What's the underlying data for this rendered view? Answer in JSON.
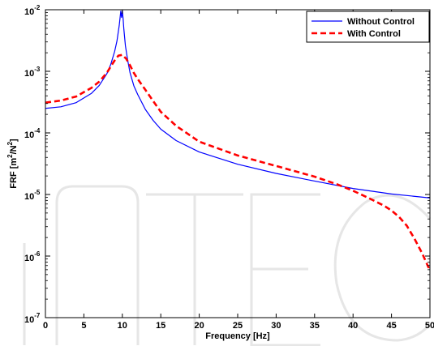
{
  "chart_data": {
    "type": "line",
    "xlabel": "Frequency [Hz]",
    "ylabel_parts": {
      "base": "FRF [m",
      "sup1": "2",
      "mid": "/N",
      "sup2": "2",
      "end": "]"
    },
    "xlim": [
      0,
      50
    ],
    "ylim_log10": [
      -7,
      -2
    ],
    "yscale": "log",
    "x_ticks": [
      0,
      5,
      10,
      15,
      20,
      25,
      30,
      35,
      40,
      45,
      50
    ],
    "y_ticks": [
      {
        "base": "10",
        "exp": "-7"
      },
      {
        "base": "10",
        "exp": "-6"
      },
      {
        "base": "10",
        "exp": "-5"
      },
      {
        "base": "10",
        "exp": "-4"
      },
      {
        "base": "10",
        "exp": "-3"
      },
      {
        "base": "10",
        "exp": "-2"
      }
    ],
    "legend_position": "top-right",
    "series": [
      {
        "name": "Without Control",
        "color": "#0000ff",
        "style": "solid",
        "x": [
          0,
          2,
          4,
          6,
          7,
          8,
          8.5,
          9,
          9.3,
          9.6,
          9.8,
          9.9,
          10.0,
          10.1,
          10.2,
          10.4,
          10.7,
          11,
          11.5,
          12,
          13,
          14,
          15,
          17,
          20,
          25,
          30,
          35,
          40,
          45,
          50
        ],
        "y": [
          0.00025,
          0.000265,
          0.00031,
          0.00044,
          0.00059,
          0.00092,
          0.0013,
          0.0021,
          0.0031,
          0.0056,
          0.0095,
          0.0075,
          0.0096,
          0.0072,
          0.0048,
          0.0026,
          0.0015,
          0.00095,
          0.00058,
          0.00042,
          0.00024,
          0.00016,
          0.000115,
          7.5e-05,
          4.9e-05,
          3.1e-05,
          2.2e-05,
          1.65e-05,
          1.25e-05,
          1.02e-05,
          8.8e-06
        ]
      },
      {
        "name": "With Control",
        "color": "#ff0000",
        "style": "dashed",
        "x": [
          0,
          2,
          4,
          6,
          7,
          8,
          8.5,
          9,
          9.5,
          10,
          10.5,
          11,
          11.5,
          12,
          13,
          14,
          15,
          17,
          20,
          25,
          30,
          35,
          38,
          40,
          42,
          44,
          45,
          46,
          47,
          48,
          49,
          50
        ],
        "y": [
          0.00031,
          0.000335,
          0.00039,
          0.00054,
          0.00068,
          0.00095,
          0.0012,
          0.0015,
          0.0018,
          0.00185,
          0.0016,
          0.00125,
          0.00094,
          0.00075,
          0.0005,
          0.00033,
          0.00022,
          0.00013,
          7.2e-05,
          4.3e-05,
          2.9e-05,
          1.95e-05,
          1.45e-05,
          1.15e-05,
          8.8e-06,
          6.6e-06,
          5.5e-06,
          4.3e-06,
          3.1e-06,
          1.9e-06,
          1.1e-06,
          5.8e-07
        ]
      }
    ]
  },
  "watermark": {
    "text": "INTECH"
  }
}
